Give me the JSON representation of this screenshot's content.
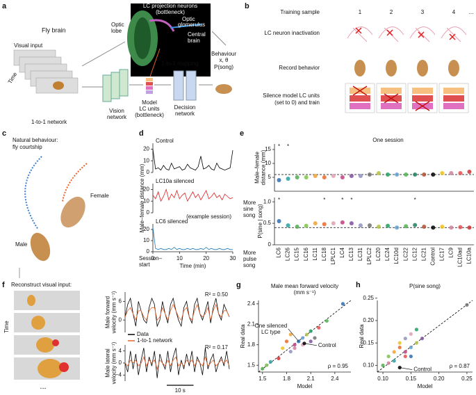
{
  "figure": {
    "a": {
      "letter": "a",
      "lc_neurons": "LC projection neurons",
      "bottleneck": "(bottleneck)",
      "optic_glomerulus": [
        "Optic",
        "glomerulus"
      ],
      "optic_lobe": [
        "Optic",
        "lobe"
      ],
      "central_brain": [
        "Central",
        "brain"
      ],
      "fly_brain": "Fly brain",
      "visual_input": "Visual input",
      "time": "Time",
      "mapping": "1-to-1 mapping",
      "behaviour": "Behaviour",
      "behaviour_vars": "x, θ",
      "psong": "P(song)",
      "network": "1-to-1 network",
      "vision": [
        "Vision",
        "network"
      ],
      "model_lc": [
        "Model",
        "LC units",
        "(bottleneck)"
      ],
      "decision": [
        "Decision",
        "network"
      ]
    },
    "b": {
      "letter": "b",
      "training": "Training sample",
      "samples": [
        "1",
        "2",
        "3",
        "4",
        "..."
      ],
      "inactivation": "LC neuron inactivation",
      "record": "Record behavior",
      "silence": [
        "Silence model LC units",
        "(set to 0) and train"
      ]
    },
    "c": {
      "letter": "c",
      "title": [
        "Natural behaviour:",
        "fly courtship"
      ],
      "female": "Female",
      "male": "Male"
    },
    "d": {
      "letter": "d",
      "session": [
        "Session–",
        "start"
      ]
    },
    "e": {
      "letter": "e"
    },
    "f": {
      "letter": "f",
      "title": "Reconstruct visual input:",
      "time": "Time",
      "more": "..."
    },
    "g": {
      "letter": "g"
    },
    "h": {
      "letter": "h"
    }
  },
  "chart_data": [
    {
      "type": "line",
      "title": "Control",
      "x": [
        0,
        1,
        2,
        3,
        4,
        5,
        6,
        7,
        8,
        9,
        10,
        11,
        12,
        13,
        14,
        15,
        16,
        17,
        18,
        19,
        20,
        21,
        22,
        23,
        24,
        25,
        26,
        27,
        28,
        29,
        30
      ],
      "xlim": [
        0,
        30
      ],
      "ylim": [
        0,
        25
      ],
      "yticks": [
        0,
        10,
        20
      ],
      "series": [
        {
          "name": "Control",
          "color": "#000000",
          "values": [
            20,
            3,
            4,
            2,
            6,
            3,
            2,
            8,
            3,
            4,
            5,
            2,
            3,
            7,
            4,
            3,
            2,
            5,
            14,
            3,
            4,
            6,
            3,
            2,
            8,
            4,
            3,
            2,
            3,
            4,
            19
          ]
        }
      ]
    },
    {
      "type": "line",
      "title": "LC10a silenced",
      "ylabel": "Male–female distance (mm)",
      "annotation": "(example session)",
      "x": [
        0,
        1,
        2,
        3,
        4,
        5,
        6,
        7,
        8,
        9,
        10,
        11,
        12,
        13,
        14,
        15,
        16,
        17,
        18,
        19,
        20,
        21,
        22,
        23,
        24,
        25,
        26,
        27,
        28,
        29,
        30
      ],
      "xlim": [
        0,
        30
      ],
      "ylim": [
        0,
        25
      ],
      "yticks": [
        0,
        10,
        20
      ],
      "series": [
        {
          "name": "LC10a silenced",
          "color": "#e02020",
          "values": [
            15,
            12,
            18,
            10,
            14,
            20,
            11,
            16,
            13,
            19,
            12,
            15,
            17,
            10,
            14,
            18,
            13,
            16,
            11,
            15,
            19,
            12,
            14,
            17,
            13,
            15,
            11,
            16,
            14,
            12,
            13
          ]
        }
      ]
    },
    {
      "type": "line",
      "title": "LC6 silenced",
      "xlabel": "Time (min)",
      "x": [
        0,
        1,
        2,
        3,
        4,
        5,
        6,
        7,
        8,
        9,
        10,
        11,
        12,
        13,
        14,
        15,
        16,
        17,
        18,
        19,
        20,
        21,
        22,
        23,
        24,
        25,
        26,
        27,
        28,
        29,
        30
      ],
      "xlim": [
        0,
        30
      ],
      "ylim": [
        0,
        25
      ],
      "yticks": [
        0,
        10,
        20
      ],
      "xticks": [
        0,
        10,
        20,
        30
      ],
      "series": [
        {
          "name": "LC6 silenced",
          "color": "#1f77b4",
          "values": [
            22,
            3,
            2,
            3,
            2,
            2,
            3,
            2,
            4,
            2,
            3,
            2,
            2,
            3,
            2,
            3,
            2,
            2,
            3,
            2,
            4,
            2,
            3,
            2,
            2,
            3,
            2,
            2,
            3,
            2,
            2
          ]
        }
      ]
    },
    {
      "type": "dot",
      "title": "One session",
      "ylabel": [
        "Male–female",
        "distance (mm)"
      ],
      "categories": [
        "LC6",
        "LC26",
        "LC15",
        "LC16",
        "LC11",
        "LC18",
        "LPLC1",
        "LC4",
        "LC13",
        "LC31",
        "LPLC2",
        "LC20",
        "LC24",
        "LC10d",
        "LC22",
        "LC12",
        "LC21",
        "Control",
        "LC17",
        "LC9",
        "LC10ad",
        "LC10a"
      ],
      "values": [
        4,
        4.5,
        5,
        5,
        5.5,
        5,
        5.5,
        5,
        5.5,
        5.5,
        6,
        6.5,
        6,
        6,
        6,
        6,
        6,
        6,
        6.5,
        6.5,
        6.5,
        7
      ],
      "reference": 6,
      "ylim": [
        0,
        17
      ],
      "yticks": [
        5,
        10,
        15
      ],
      "colors": [
        "#2a6fb5",
        "#2ba0a0",
        "#4cae4c",
        "#7cc24a",
        "#f0a030",
        "#e86a2a",
        "#e0a0b0",
        "#c04080",
        "#8050a0",
        "#9090c0",
        "#707070",
        "#b0c040",
        "#20a060",
        "#60a0d0",
        "#50b050",
        "#208060",
        "#b05030",
        "#000000",
        "#f0c020",
        "#d080a0",
        "#e05050",
        "#d03030"
      ],
      "annotations": [
        {
          "text": "*",
          "at": 0
        },
        {
          "text": "*",
          "at": 1
        }
      ]
    },
    {
      "type": "dot",
      "ylabel": "P(sine | song)",
      "notes_top": [
        "More",
        "sine",
        "song"
      ],
      "notes_bottom": [
        "More",
        "pulse",
        "song"
      ],
      "categories": [
        "LC6",
        "LC26",
        "LC15",
        "LC16",
        "LC11",
        "LC18",
        "LPLC1",
        "LC4",
        "LC13",
        "LC31",
        "LPLC2",
        "LC20",
        "LC24",
        "LC10d",
        "LC22",
        "LC12",
        "LC21",
        "Control",
        "LC17",
        "LC9",
        "LC10ad",
        "LC10a"
      ],
      "values": [
        0.55,
        0.45,
        0.42,
        0.44,
        0.5,
        0.48,
        0.5,
        0.52,
        0.5,
        0.45,
        0.45,
        0.42,
        0.44,
        0.4,
        0.43,
        0.46,
        0.42,
        0.4,
        0.42,
        0.4,
        0.41,
        0.4
      ],
      "reference": 0.4,
      "ylim": [
        0,
        1.1
      ],
      "yticks": [
        0,
        0.5,
        {
          "value": 1,
          "label": "1.0"
        }
      ],
      "colors": [
        "#2a6fb5",
        "#2ba0a0",
        "#4cae4c",
        "#7cc24a",
        "#f0a030",
        "#e86a2a",
        "#e0a0b0",
        "#c04080",
        "#8050a0",
        "#9090c0",
        "#707070",
        "#b0c040",
        "#20a060",
        "#60a0d0",
        "#50b050",
        "#208060",
        "#b05030",
        "#000000",
        "#f0c020",
        "#d080a0",
        "#e05050",
        "#d03030"
      ],
      "annotations": [
        {
          "text": "*",
          "at": 0
        },
        {
          "text": "*",
          "at": 5
        },
        {
          "text": "*",
          "at": 7
        },
        {
          "text": "*",
          "at": 8
        },
        {
          "text": "*",
          "at": 15
        }
      ]
    },
    {
      "type": "line",
      "ylabel": [
        "Male forward",
        "velocity (mm s⁻¹)"
      ],
      "annotation": "R² = 0.50",
      "x": [
        0,
        1,
        2,
        3,
        4,
        5,
        6,
        7,
        8,
        9,
        10,
        11,
        12,
        13,
        14,
        15,
        16,
        17,
        18,
        19,
        20,
        21,
        22,
        23,
        24,
        25,
        26,
        27,
        28,
        29,
        30,
        31,
        32,
        33,
        34,
        35,
        36,
        37,
        38,
        39
      ],
      "xlim": [
        0,
        39
      ],
      "ylim": [
        -4,
        9
      ],
      "yticks": [
        0,
        6
      ],
      "legend": "lower left",
      "series": [
        {
          "name": "Data",
          "color": "#000000",
          "values": [
            1,
            5,
            7,
            2,
            -2,
            6,
            3,
            0,
            -1,
            4,
            7,
            5,
            -2,
            0,
            6,
            2,
            -1,
            5,
            7,
            3,
            0,
            -2,
            4,
            6,
            1,
            -1,
            5,
            7,
            2,
            0,
            3,
            6,
            -1,
            4,
            7,
            2,
            0,
            5,
            3,
            1
          ]
        },
        {
          "name": "1-to-1 network",
          "color": "#e8632b",
          "values": [
            1,
            3,
            4,
            2,
            0,
            3,
            3,
            1,
            0,
            3,
            4,
            4,
            0,
            1,
            4,
            2,
            0,
            3,
            5,
            3,
            1,
            0,
            3,
            4,
            1,
            0,
            3,
            5,
            2,
            1,
            2,
            4,
            0,
            3,
            5,
            2,
            1,
            3,
            3,
            1
          ]
        }
      ]
    },
    {
      "type": "line",
      "ylabel": [
        "Male lateral",
        "velocity (mm s⁻¹)"
      ],
      "annotation": "R² = 0.17",
      "scale_bar": {
        "value": 10,
        "label": "10 s"
      },
      "x": [
        0,
        1,
        2,
        3,
        4,
        5,
        6,
        7,
        8,
        9,
        10,
        11,
        12,
        13,
        14,
        15,
        16,
        17,
        18,
        19,
        20,
        21,
        22,
        23,
        24,
        25,
        26,
        27,
        28,
        29,
        30,
        31,
        32,
        33,
        34,
        35,
        36,
        37,
        38,
        39
      ],
      "xlim": [
        0,
        39
      ],
      "ylim": [
        -6,
        6
      ],
      "yticks": [
        {
          "value": -4,
          "label": "−4"
        },
        0,
        4
      ],
      "series": [
        {
          "name": "Data",
          "color": "#000000",
          "values": [
            0,
            -3,
            4,
            -2,
            3,
            -4,
            1,
            5,
            -3,
            2,
            -1,
            4,
            -5,
            3,
            0,
            -2,
            4,
            -3,
            2,
            5,
            -4,
            1,
            -2,
            3,
            -1,
            4,
            -3,
            2,
            0,
            -4,
            5,
            -2,
            1,
            3,
            -3,
            0,
            2,
            -1,
            4,
            -2
          ]
        },
        {
          "name": "1-to-1 network",
          "color": "#e8632b",
          "values": [
            0,
            -1,
            1,
            0,
            1,
            -1,
            0,
            2,
            -1,
            1,
            0,
            1,
            -2,
            1,
            0,
            -1,
            1,
            -1,
            1,
            2,
            -1,
            0,
            -1,
            1,
            0,
            1,
            -1,
            1,
            0,
            -1,
            2,
            -1,
            0,
            1,
            -1,
            0,
            1,
            0,
            1,
            -1
          ]
        }
      ]
    },
    {
      "type": "scatter",
      "title": [
        "Male mean forward velocity",
        "(mm s⁻¹)"
      ],
      "xlabel": "Model",
      "ylabel": "Real data",
      "xlim": [
        1.45,
        2.6
      ],
      "ylim": [
        1.4,
        2.45
      ],
      "xticks": [
        1.5,
        1.8,
        2.1,
        2.4
      ],
      "yticks": [
        1.5,
        1.8,
        2.1,
        2.4
      ],
      "x": [
        1.5,
        1.55,
        1.6,
        1.75,
        1.8,
        1.85,
        1.9,
        1.95,
        2.0,
        2.0,
        2.05,
        2.1,
        2.1,
        1.85,
        1.9,
        2.15,
        2.2,
        2.3,
        2.5,
        1.7,
        2.02
      ],
      "y": [
        1.45,
        1.5,
        1.55,
        1.75,
        1.85,
        1.7,
        1.8,
        1.85,
        1.9,
        1.8,
        1.95,
        2.0,
        1.85,
        1.95,
        1.75,
        1.9,
        2.05,
        2.15,
        2.4,
        1.6,
        1.82
      ],
      "colors": [
        "#4cae4c",
        "#7cc24a",
        "#2ba0a0",
        "#f0c020",
        "#e86a2a",
        "#9090c0",
        "#c04080",
        "#2a6fb5",
        "#60a0d0",
        "#e0a0b0",
        "#b0c040",
        "#20a060",
        "#8050a0",
        "#f0a030",
        "#d080a0",
        "#707070",
        "#e05050",
        "#50b050",
        "#2a6fb5",
        "#d03030",
        "#000000"
      ],
      "annotations": [
        {
          "text": "One silenced",
          "point": 7
        },
        {
          "text": "LC type"
        },
        {
          "text": "Control",
          "point": 20
        },
        {
          "text": "ρ = 0.95"
        }
      ]
    },
    {
      "type": "scatter",
      "title": [
        "P(sine song)"
      ],
      "xlabel": "Model",
      "ylabel": "Real data",
      "xlim": [
        0.09,
        0.26
      ],
      "ylim": [
        0.085,
        0.245
      ],
      "xticks": [
        {
          "value": 0.1,
          "label": "0.10"
        },
        0.15,
        {
          "value": 0.2,
          "label": "0.20"
        },
        0.25
      ],
      "yticks": [
        {
          "value": 0.1,
          "label": "0.10"
        },
        0.15,
        {
          "value": 0.2,
          "label": "0.20"
        },
        0.25
      ],
      "x": [
        0.1,
        0.11,
        0.12,
        0.13,
        0.13,
        0.14,
        0.14,
        0.15,
        0.15,
        0.16,
        0.16,
        0.17,
        0.12,
        0.11,
        0.25,
        0.14,
        0.13,
        0.15
      ],
      "y": [
        0.1,
        0.12,
        0.11,
        0.15,
        0.14,
        0.16,
        0.13,
        0.14,
        0.17,
        0.15,
        0.18,
        0.16,
        0.13,
        0.105,
        0.235,
        0.12,
        0.095,
        0.12
      ],
      "colors": [
        "#4cae4c",
        "#7cc24a",
        "#2ba0a0",
        "#f0c020",
        "#e86a2a",
        "#9090c0",
        "#c04080",
        "#60a0d0",
        "#e0a0b0",
        "#b0c040",
        "#20a060",
        "#8050a0",
        "#f0a030",
        "#d080a0",
        "#707070",
        "#e05050",
        "#000000",
        "#2a6fb5"
      ],
      "annotations": [
        {
          "text": "Control",
          "point": 16
        },
        {
          "text": "ρ = 0.87"
        }
      ]
    }
  ]
}
